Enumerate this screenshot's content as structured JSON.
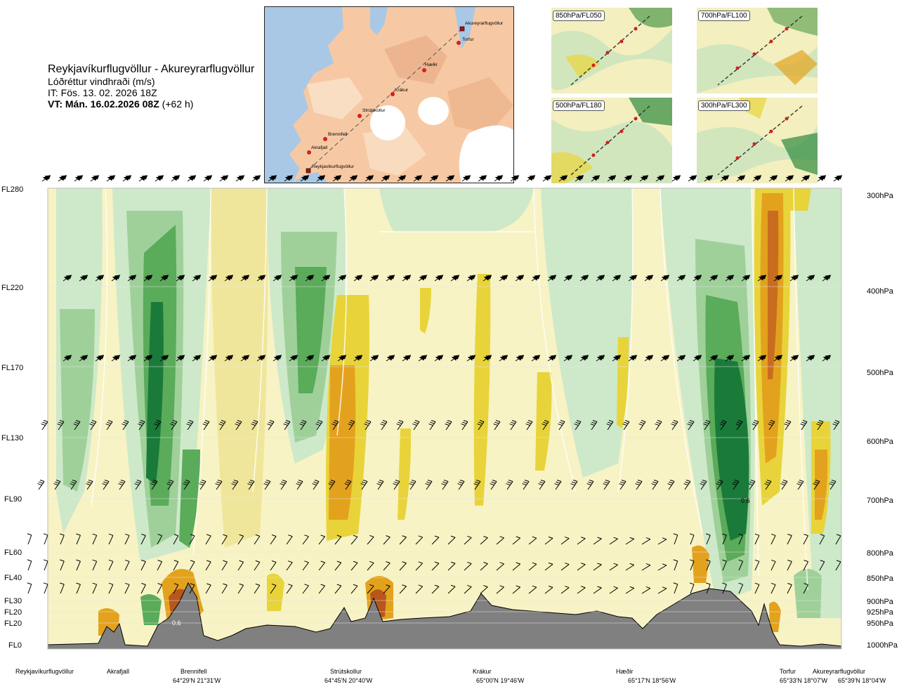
{
  "header": {
    "route": "Reykjavíkurflugvöllur - Akureyrarflugvöllur",
    "parameter": "Lóðréttur vindhraði (m/s)",
    "issue_time": "IT: Fös. 13. 02. 2026 18Z",
    "valid_time_bold": "VT: Mán. 16.02.2026 08Z",
    "valid_offset": "(+62 h)"
  },
  "route_map": {
    "points": [
      {
        "name": "Akureyrarflugvöllur"
      },
      {
        "name": "Torfur"
      },
      {
        "name": "Hæðir"
      },
      {
        "name": "Krákur"
      },
      {
        "name": "Strútskollur"
      },
      {
        "name": "Brennifell"
      },
      {
        "name": "Akrafjall"
      },
      {
        "name": "Reykjavíkurflugvöllur"
      }
    ]
  },
  "insets": [
    {
      "label": "850hPa/FL050"
    },
    {
      "label": "700hPa/FL100"
    },
    {
      "label": "500hPa/FL180"
    },
    {
      "label": "300hPa/FL300"
    }
  ],
  "colors": {
    "sink_strong": "#1a7a3a",
    "sink_medium": "#6fb46f",
    "sink_weak": "#cde9c9",
    "neutral": "#f7f3c4",
    "lift_weak": "#f0e69b",
    "lift_medium": "#e8d43a",
    "lift_strong": "#e3a21e",
    "lift_very_strong": "#b8561b",
    "terrain": "#808080"
  },
  "chart_data": {
    "type": "heatmap",
    "title": "Lóðréttur vindhraði (m/s)",
    "x_axis": {
      "stations": [
        {
          "name": "Reykjavíkurflugvöllur",
          "coord": ""
        },
        {
          "name": "Akrafjall",
          "coord": ""
        },
        {
          "name": "Brennifell",
          "coord": "64°29'N 21°31'W"
        },
        {
          "name": "Strútskollur",
          "coord": "64°45'N 20°40'W"
        },
        {
          "name": "Krákur",
          "coord": "65°00'N 19°46'W"
        },
        {
          "name": "Hæðir",
          "coord": "65°17'N 18°56'W"
        },
        {
          "name": "Torfur",
          "coord": "65°33'N 18°07'W"
        },
        {
          "name": "Akureyrarflugvöllur",
          "coord": "65°39'N 18°04'W"
        }
      ]
    },
    "y_left_levels": [
      "FL280",
      "FL220",
      "FL170",
      "FL130",
      "FL90",
      "FL60",
      "FL40",
      "FL30",
      "FL20",
      "FL20",
      "FL0"
    ],
    "y_right_levels": [
      "300hPa",
      "400hPa",
      "500hPa",
      "600hPa",
      "700hPa",
      "800hPa",
      "850hPa",
      "900hPa",
      "925hPa",
      "950hPa",
      "1000hPa"
    ],
    "contour_labels": [
      "0.6",
      "0.6"
    ]
  }
}
